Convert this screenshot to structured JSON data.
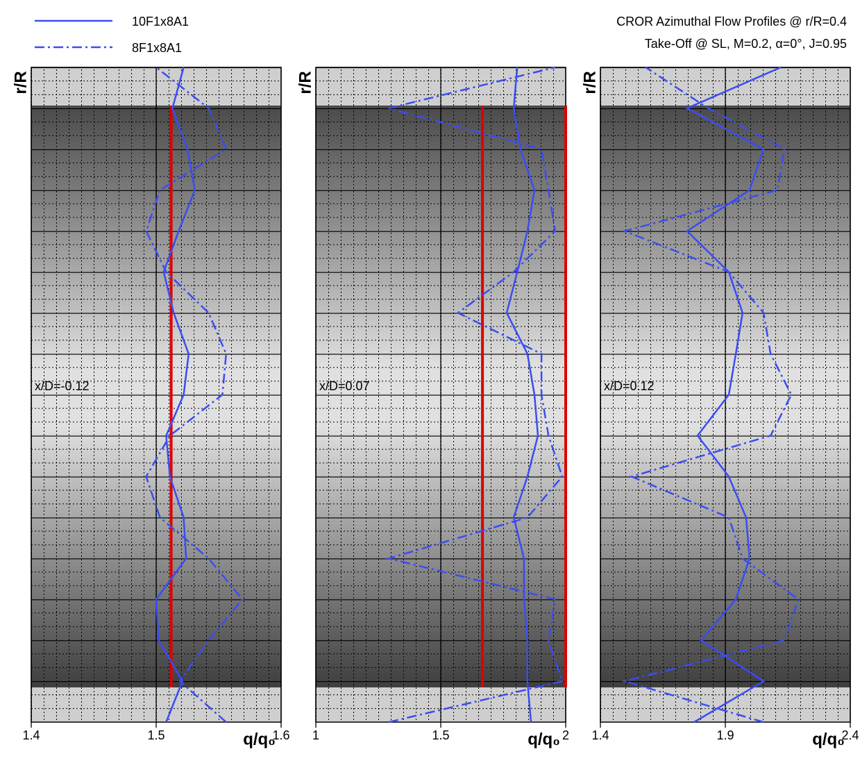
{
  "title": [
    "CROR Azimuthal Flow Profiles @ r/R=0.4",
    "Take-Off @ SL, M=0.2, α=0°, J=0.95"
  ],
  "chart_data": [
    {
      "type": "line",
      "annotation": "x/D=-0.12",
      "xlabel": "q/q₀",
      "ylabel": "r/R",
      "xlim": [
        1.4,
        1.6
      ],
      "xticks": [
        1.4,
        1.5,
        1.6
      ],
      "ylim": [
        0,
        1
      ],
      "reference_lines": [
        1.512
      ],
      "reference_color": "#dd0000",
      "y": [
        0,
        0.0625,
        0.125,
        0.1875,
        0.25,
        0.3125,
        0.375,
        0.4375,
        0.5,
        0.5625,
        0.625,
        0.6875,
        0.75,
        0.8125,
        0.875,
        0.9375,
        1
      ],
      "series": [
        {
          "name": "10F1x8A1",
          "color": "#3a4cf5",
          "style": "solid",
          "values": [
            1.508,
            1.521,
            1.502,
            1.5,
            1.524,
            1.522,
            1.511,
            1.508,
            1.522,
            1.526,
            1.514,
            1.506,
            1.518,
            1.531,
            1.525,
            1.513,
            1.522
          ]
        },
        {
          "name": "8F1x8A1",
          "color": "#3a4cf5",
          "style": "dashdot",
          "values": [
            1.556,
            1.519,
            1.542,
            1.569,
            1.542,
            1.503,
            1.492,
            1.511,
            1.553,
            1.556,
            1.542,
            1.508,
            1.492,
            1.503,
            1.556,
            1.542,
            1.5
          ]
        }
      ]
    },
    {
      "type": "line",
      "annotation": "x/D=0.07",
      "xlabel": "q/q₀",
      "ylabel": "r/R",
      "xlim": [
        1,
        2
      ],
      "xticks": [
        1,
        1.5,
        2
      ],
      "ylim": [
        0,
        1
      ],
      "reference_lines": [
        1.667,
        2.0
      ],
      "reference_color": "#dd0000",
      "y": [
        0,
        0.0625,
        0.125,
        0.1875,
        0.25,
        0.3125,
        0.375,
        0.4375,
        0.5,
        0.5625,
        0.625,
        0.6875,
        0.75,
        0.8125,
        0.875,
        0.9375,
        1
      ],
      "series": [
        {
          "name": "10F1x8A1",
          "color": "#3a4cf5",
          "style": "solid",
          "values": [
            1.861,
            1.847,
            1.847,
            1.833,
            1.833,
            1.792,
            1.847,
            1.889,
            1.875,
            1.847,
            1.764,
            1.806,
            1.847,
            1.875,
            1.819,
            1.792,
            1.806
          ]
        },
        {
          "name": "8F1x8A1",
          "color": "#3a4cf5",
          "style": "dashdot",
          "values": [
            1.292,
            1.986,
            1.931,
            1.958,
            1.292,
            1.847,
            1.986,
            1.931,
            1.903,
            1.903,
            1.569,
            1.792,
            1.958,
            1.931,
            1.903,
            1.292,
            1.958
          ]
        }
      ]
    },
    {
      "type": "line",
      "annotation": "x/D=0.12",
      "xlabel": "q/q₀",
      "ylabel": "r/R",
      "xlim": [
        1.4,
        2.4
      ],
      "xticks": [
        1.4,
        1.9,
        2.4
      ],
      "ylim": [
        0,
        1
      ],
      "reference_lines": [],
      "reference_color": "#dd0000",
      "y": [
        0,
        0.0625,
        0.125,
        0.1875,
        0.25,
        0.3125,
        0.375,
        0.4375,
        0.5,
        0.5625,
        0.625,
        0.6875,
        0.75,
        0.8125,
        0.875,
        0.9375,
        1
      ],
      "series": [
        {
          "name": "10F1x8A1",
          "color": "#3a4cf5",
          "style": "solid",
          "values": [
            1.775,
            2.053,
            1.803,
            1.942,
            1.997,
            1.983,
            1.914,
            1.789,
            1.914,
            1.942,
            1.969,
            1.914,
            1.747,
            1.997,
            2.053,
            1.747,
            2.122
          ]
        },
        {
          "name": "8F1x8A1",
          "color": "#3a4cf5",
          "style": "dashdot",
          "values": [
            2.053,
            1.497,
            2.136,
            2.192,
            1.969,
            1.914,
            1.525,
            2.081,
            2.164,
            2.081,
            2.053,
            1.914,
            1.497,
            2.108,
            2.136,
            1.831,
            1.581
          ]
        }
      ]
    }
  ]
}
